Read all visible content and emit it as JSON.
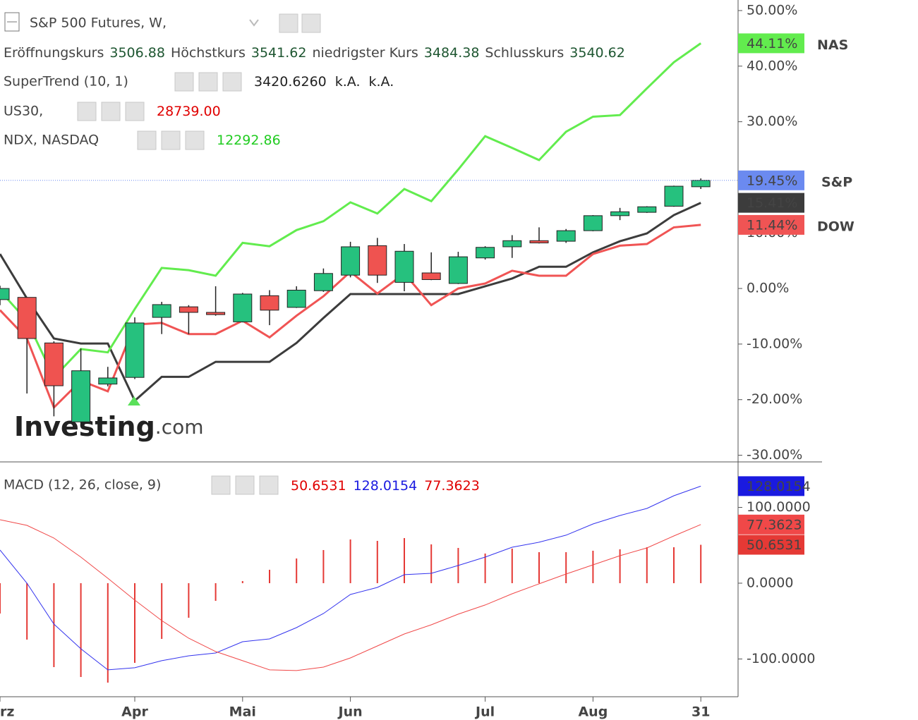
{
  "chart_data": [
    {
      "type": "candlestick",
      "title": "S&P 500 Futures, W,",
      "ohlc_legend": [
        {
          "label": "Eröffnungskurs",
          "value": "3506.88"
        },
        {
          "label": "Höchstkurs",
          "value": "3541.62"
        },
        {
          "label": "niedrigster Kurs",
          "value": "3484.38"
        },
        {
          "label": "Schlusskurs",
          "value": "3540.62"
        }
      ],
      "open": [
        -2.0,
        -1.6,
        -9.8,
        -24.0,
        -17.2,
        -16.0,
        -5.2,
        -3.3,
        -4.3,
        -6.0,
        -1.3,
        -3.4,
        -0.4,
        2.4,
        7.7,
        1.1,
        2.8,
        0.9,
        5.5,
        7.5,
        8.6,
        8.5,
        10.4,
        13.1,
        13.7,
        14.8,
        18.3
      ],
      "high": [
        0.5,
        -1.6,
        -9.5,
        -10.8,
        -14.1,
        -5.2,
        -2.4,
        -3.0,
        0.4,
        -0.8,
        -0.3,
        0.4,
        3.6,
        8.4,
        9.1,
        8.0,
        6.5,
        6.6,
        7.6,
        9.6,
        11.0,
        10.7,
        13.2,
        14.5,
        14.8,
        18.5,
        19.8
      ],
      "low": [
        -3.0,
        -18.9,
        -23.0,
        -24.5,
        -17.6,
        -16.3,
        -8.2,
        -8.2,
        -4.9,
        -6.1,
        -6.6,
        -3.5,
        -0.6,
        2.0,
        1.0,
        -0.5,
        1.5,
        0.8,
        5.2,
        5.5,
        8.1,
        8.2,
        10.3,
        12.3,
        13.6,
        14.7,
        17.9
      ],
      "close": [
        0.0,
        -9.0,
        -17.5,
        -14.8,
        -16.1,
        -6.2,
        -2.9,
        -4.3,
        -4.7,
        -1.0,
        -3.9,
        -0.3,
        2.7,
        7.5,
        2.4,
        6.7,
        1.6,
        5.7,
        7.4,
        8.6,
        8.2,
        10.4,
        13.1,
        13.8,
        14.7,
        18.4,
        19.45
      ],
      "close_labels": [
        null,
        null,
        null,
        null,
        null,
        null,
        null,
        null,
        null,
        null,
        null,
        null,
        null,
        null,
        null,
        null,
        null,
        null,
        null,
        null,
        null,
        null,
        null,
        null,
        null,
        null,
        "19.45%"
      ],
      "annotation": "S&P",
      "annotation_color": "#3f51d6",
      "price_line_color": "#6b8af0",
      "up_color": "#26c17e",
      "down_color": "#ef5350",
      "series": [
        {
          "name": "SuperTrend (10, 1)",
          "legend_values": [
            "3420.6260",
            "k.A.",
            "k.A."
          ],
          "legend_color": "#222222",
          "color": "#3c3c3c",
          "values": [
            6.2,
            -1.8,
            -9.0,
            -9.9,
            -9.9,
            -20.2,
            -15.9,
            -15.9,
            -13.2,
            -13.2,
            -13.2,
            -9.8,
            -5.3,
            -1.0,
            -1.0,
            -1.0,
            -1.0,
            -1.0,
            0.4,
            1.8,
            3.9,
            3.9,
            6.5,
            8.5,
            9.9,
            13.2,
            15.41
          ],
          "value_labels": [
            null,
            null,
            null,
            null,
            null,
            null,
            null,
            null,
            null,
            null,
            null,
            null,
            null,
            null,
            null,
            null,
            null,
            null,
            null,
            null,
            null,
            null,
            null,
            null,
            null,
            null,
            "15.41%"
          ]
        },
        {
          "name": "US30,",
          "legend_values": [
            "28739.00"
          ],
          "legend_color": "#e00000",
          "color": "#f05454",
          "values": [
            -3.9,
            -9.0,
            -21.4,
            -16.6,
            -18.5,
            -6.5,
            -6.2,
            -8.2,
            -8.2,
            -5.8,
            -8.8,
            -4.9,
            -1.4,
            3.0,
            -0.9,
            2.7,
            -3.0,
            0.0,
            0.9,
            3.2,
            2.3,
            2.3,
            6.2,
            7.7,
            8.0,
            11.0,
            11.44
          ],
          "value_labels": [
            null,
            null,
            null,
            null,
            null,
            null,
            null,
            null,
            null,
            null,
            null,
            null,
            null,
            null,
            null,
            null,
            null,
            null,
            null,
            null,
            null,
            null,
            null,
            null,
            null,
            null,
            "11.44%"
          ],
          "annotation": "DOW",
          "annotation_color": "#e82020"
        },
        {
          "name": "NDX, NASDAQ",
          "legend_values": [
            "12292.86"
          ],
          "legend_color": "#22cc22",
          "color": "#62ec4e",
          "label_text_color": "#000000",
          "values": [
            -0.4,
            -5.8,
            -16.0,
            -10.9,
            -11.5,
            -3.7,
            3.7,
            3.3,
            2.3,
            8.2,
            7.6,
            10.5,
            12.1,
            15.5,
            13.5,
            17.9,
            15.7,
            21.4,
            27.4,
            25.3,
            23.1,
            28.2,
            30.9,
            31.2,
            36.0,
            40.7,
            44.11
          ],
          "value_labels": [
            null,
            null,
            null,
            null,
            null,
            null,
            null,
            null,
            null,
            null,
            null,
            null,
            null,
            null,
            null,
            null,
            null,
            null,
            null,
            null,
            null,
            null,
            null,
            null,
            null,
            null,
            "44.11%"
          ],
          "annotation": "NAS",
          "annotation_color": "#33bb33"
        }
      ],
      "ylim": [
        -31.2,
        51.9
      ],
      "yticks": [
        {
          "value": 50,
          "label": "50.00%"
        },
        {
          "value": 40,
          "label": "40.00%"
        },
        {
          "value": 30,
          "label": "30.00%"
        },
        {
          "value": 10,
          "label": "10.00%"
        },
        {
          "value": 0,
          "label": "0.00%"
        },
        {
          "value": -10,
          "label": "-10.00%"
        },
        {
          "value": -20,
          "label": "-20.00%"
        },
        {
          "value": -30,
          "label": "-30.00%"
        }
      ],
      "watermark": [
        "Investing",
        ".com"
      ]
    },
    {
      "type": "macd",
      "title": "MACD (12, 26, close, 9)",
      "categories": [
        "rz",
        null,
        null,
        null,
        null,
        "Apr",
        null,
        null,
        null,
        "Mai",
        null,
        null,
        null,
        "Jun",
        null,
        null,
        null,
        null,
        "Jul",
        null,
        null,
        null,
        "Aug",
        null,
        null,
        null,
        "31"
      ],
      "series": [
        {
          "kind": "bar",
          "color": "#e53935",
          "legend_color": "#e00000",
          "values": [
            -40.0,
            -74.4,
            -110.7,
            -123.7,
            -131.2,
            -105.1,
            -73.5,
            -45.6,
            -23.3,
            2.8,
            17.7,
            32.6,
            43.7,
            57.7,
            55.8,
            59.5,
            51.2,
            46.5,
            39.1,
            45.6,
            40.9,
            40.9,
            42.8,
            44.7,
            47.4,
            47.4,
            50.6531
          ]
        },
        {
          "kind": "line",
          "color": "#3333ee",
          "legend_color": "#1a1ae0",
          "values": [
            43.7,
            0.0,
            -54.0,
            -86.5,
            -114.4,
            -111.6,
            -102.3,
            -95.8,
            -92.1,
            -77.2,
            -73.5,
            -58.6,
            -40.0,
            -14.9,
            -5.6,
            11.2,
            13.0,
            23.3,
            34.4,
            47.4,
            54.0,
            63.3,
            78.1,
            89.3,
            98.6,
            115.3,
            128.0154
          ]
        },
        {
          "kind": "line",
          "color": "#f04848",
          "legend_color": "#e00000",
          "values": [
            83.7,
            76.3,
            59.5,
            34.4,
            6.5,
            -22.3,
            -49.3,
            -72.6,
            -90.2,
            -102.3,
            -114.4,
            -115.3,
            -110.7,
            -98.6,
            -82.8,
            -67.0,
            -54.9,
            -40.9,
            -28.8,
            -14.0,
            -0.9,
            12.1,
            24.2,
            36.3,
            46.5,
            62.3,
            77.3623
          ]
        }
      ],
      "ylim": [
        -149.8,
        160
      ],
      "yticks": [
        {
          "value": 100,
          "label": "100.0000"
        },
        {
          "value": 0,
          "label": "0.0000"
        },
        {
          "value": -100,
          "label": "-100.0000"
        }
      ]
    }
  ]
}
